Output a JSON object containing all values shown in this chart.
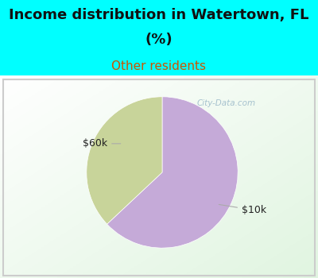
{
  "title_line1": "Income distribution in Watertown, FL",
  "title_line2": "(%)",
  "subtitle": "Other residents",
  "title_color": "#111111",
  "subtitle_color": "#cc5500",
  "background_color": "#00ffff",
  "slices": [
    {
      "label": "$10k",
      "value": 63,
      "color": "#c5aad8"
    },
    {
      "label": "$60k",
      "value": 37,
      "color": "#c8d49a"
    }
  ],
  "label_color": "#222222",
  "label_fontsize": 9,
  "title_fontsize": 13,
  "subtitle_fontsize": 11,
  "watermark": "City-Data.com",
  "watermark_color": "#99b8c8",
  "line_color": "#aaaaaa"
}
